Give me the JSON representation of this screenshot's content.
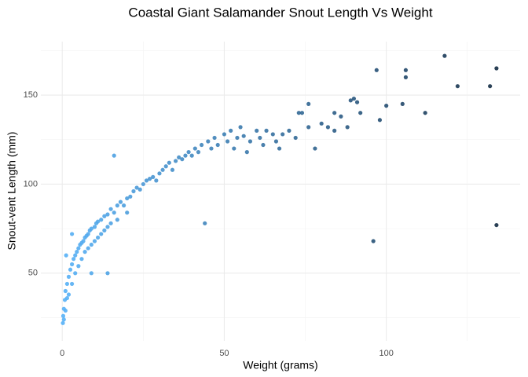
{
  "chart_data": {
    "type": "scatter",
    "title": "Coastal Giant Salamander Snout Length Vs Weight",
    "x_label": "Weight (grams)",
    "y_label": "Snout-vent Length (mm)",
    "x": [
      0.2,
      0.3,
      0.5,
      0.5,
      0.8,
      1,
      1,
      1.2,
      1.5,
      1.5,
      2,
      2,
      2.5,
      3,
      3,
      3.5,
      4,
      4,
      4.5,
      5,
      5,
      5.5,
      6,
      6,
      6.5,
      7,
      7,
      7.5,
      8,
      8,
      8.5,
      9,
      9,
      10,
      10,
      10.5,
      11,
      11,
      12,
      12,
      13,
      13,
      14,
      14,
      15,
      15,
      16,
      16,
      17,
      17,
      18,
      19,
      20,
      20,
      21,
      22,
      23,
      24,
      25,
      26,
      27,
      28,
      29,
      30,
      31,
      32,
      33,
      34,
      35,
      36,
      37,
      38,
      39,
      40,
      41,
      42,
      43,
      45,
      46,
      47,
      48,
      50,
      51,
      52,
      53,
      54,
      55,
      56,
      57,
      58,
      60,
      61,
      62,
      63,
      65,
      66,
      67,
      68,
      70,
      72,
      74,
      76,
      78,
      80,
      82,
      84,
      86,
      88,
      90,
      92,
      9,
      3,
      14,
      44,
      96,
      134,
      97,
      106,
      106,
      118,
      122,
      132,
      134,
      112,
      105,
      100,
      91,
      89,
      76,
      73,
      98,
      84
    ],
    "series": [
      {
        "name": "Weight",
        "values": [
          22,
          26,
          30,
          24,
          35,
          40,
          29,
          60,
          44,
          36,
          48,
          38,
          52,
          55,
          44,
          58,
          60,
          50,
          62,
          64,
          54,
          66,
          67,
          58,
          68,
          70,
          62,
          71,
          72,
          64,
          74,
          75,
          66,
          76,
          68,
          78,
          79,
          70,
          80,
          72,
          82,
          74,
          83,
          76,
          86,
          78,
          116,
          84,
          88,
          80,
          90,
          88,
          92,
          84,
          93,
          96,
          98,
          97,
          100,
          102,
          103,
          104,
          102,
          106,
          108,
          110,
          112,
          108,
          113,
          115,
          114,
          116,
          118,
          116,
          120,
          118,
          122,
          124,
          120,
          126,
          122,
          128,
          124,
          130,
          120,
          126,
          132,
          127,
          118,
          124,
          130,
          126,
          122,
          130,
          128,
          124,
          120,
          128,
          130,
          126,
          140,
          132,
          120,
          134,
          132,
          130,
          138,
          132,
          148,
          140,
          50,
          72,
          50,
          78,
          68,
          77,
          164,
          164,
          160,
          172,
          155,
          155,
          165,
          140,
          145,
          144,
          146,
          147,
          145,
          140,
          136,
          140
        ]
      }
    ],
    "color_scale": [
      "#56B1F7",
      "#132B43"
    ],
    "xlim": [
      -6.6,
      141.3
    ],
    "ylim": [
      12,
      180
    ],
    "xticks": [
      0,
      50,
      100
    ],
    "yticks": [
      50,
      100,
      150
    ],
    "x_minor_grid": [
      25,
      75,
      125
    ],
    "y_minor_grid": [
      25,
      75,
      125,
      175
    ],
    "grid": true
  }
}
